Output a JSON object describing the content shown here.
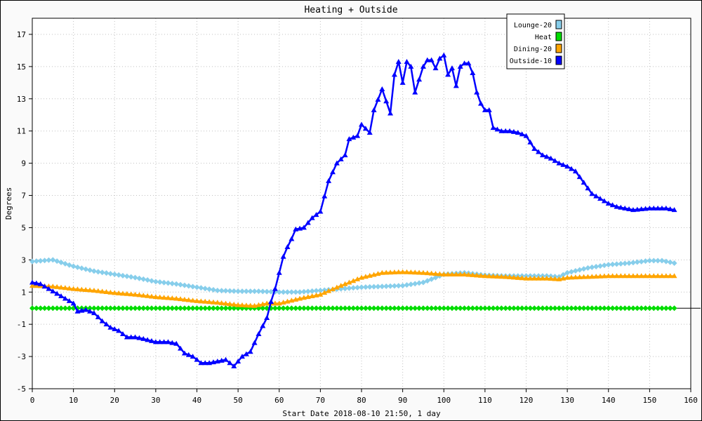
{
  "chart_data": {
    "type": "line",
    "title": "Heating + Outside",
    "xlabel": "Start Date 2018-08-10 21:50, 1 day",
    "ylabel": "Degrees",
    "xlim": [
      0,
      160
    ],
    "ylim": [
      -5,
      18
    ],
    "x_ticks": [
      0,
      10,
      20,
      30,
      40,
      50,
      60,
      70,
      80,
      90,
      100,
      110,
      120,
      130,
      140,
      150,
      160
    ],
    "y_ticks": [
      -5,
      -3,
      -1,
      1,
      3,
      5,
      7,
      9,
      11,
      13,
      15,
      17
    ],
    "grid": true,
    "legend": "top-right",
    "series": [
      {
        "name": "Lounge-20",
        "color": "#87CEEB",
        "marker": "diamond",
        "points": [
          [
            0,
            2.9
          ],
          [
            5,
            3.0
          ],
          [
            10,
            2.6
          ],
          [
            15,
            2.3
          ],
          [
            20,
            2.1
          ],
          [
            25,
            1.9
          ],
          [
            30,
            1.65
          ],
          [
            35,
            1.5
          ],
          [
            40,
            1.3
          ],
          [
            45,
            1.1
          ],
          [
            50,
            1.05
          ],
          [
            55,
            1.05
          ],
          [
            60,
            1.0
          ],
          [
            65,
            1.0
          ],
          [
            70,
            1.1
          ],
          [
            75,
            1.2
          ],
          [
            80,
            1.3
          ],
          [
            85,
            1.35
          ],
          [
            90,
            1.4
          ],
          [
            95,
            1.6
          ],
          [
            100,
            2.1
          ],
          [
            105,
            2.2
          ],
          [
            110,
            2.05
          ],
          [
            115,
            2.0
          ],
          [
            120,
            2.0
          ],
          [
            125,
            2.0
          ],
          [
            128,
            1.95
          ],
          [
            130,
            2.2
          ],
          [
            135,
            2.5
          ],
          [
            140,
            2.7
          ],
          [
            145,
            2.8
          ],
          [
            150,
            2.95
          ],
          [
            153,
            2.95
          ],
          [
            156,
            2.8
          ]
        ]
      },
      {
        "name": "Heat",
        "color": "#00DD00",
        "marker": "diamond",
        "points": [
          [
            0,
            0
          ],
          [
            156,
            0
          ]
        ]
      },
      {
        "name": "Dining-20",
        "color": "#FFA500",
        "marker": "triangle",
        "points": [
          [
            0,
            1.4
          ],
          [
            5,
            1.35
          ],
          [
            10,
            1.2
          ],
          [
            15,
            1.1
          ],
          [
            20,
            0.95
          ],
          [
            25,
            0.85
          ],
          [
            30,
            0.7
          ],
          [
            35,
            0.6
          ],
          [
            40,
            0.45
          ],
          [
            45,
            0.35
          ],
          [
            50,
            0.2
          ],
          [
            54,
            0.15
          ],
          [
            57,
            0.3
          ],
          [
            60,
            0.3
          ],
          [
            65,
            0.6
          ],
          [
            70,
            0.85
          ],
          [
            75,
            1.4
          ],
          [
            80,
            1.9
          ],
          [
            85,
            2.2
          ],
          [
            90,
            2.25
          ],
          [
            95,
            2.2
          ],
          [
            100,
            2.1
          ],
          [
            105,
            2.1
          ],
          [
            110,
            2.0
          ],
          [
            115,
            1.95
          ],
          [
            120,
            1.85
          ],
          [
            125,
            1.85
          ],
          [
            128,
            1.8
          ],
          [
            130,
            1.9
          ],
          [
            135,
            1.95
          ],
          [
            140,
            2.0
          ],
          [
            145,
            2.0
          ],
          [
            150,
            2.0
          ],
          [
            156,
            2.0
          ]
        ]
      },
      {
        "name": "Outside-10",
        "color": "#0000FF",
        "marker": "triangle",
        "points": [
          [
            0,
            1.6
          ],
          [
            2,
            1.5
          ],
          [
            4,
            1.2
          ],
          [
            6,
            0.9
          ],
          [
            8,
            0.6
          ],
          [
            10,
            0.3
          ],
          [
            11,
            -0.2
          ],
          [
            13,
            -0.1
          ],
          [
            15,
            -0.3
          ],
          [
            17,
            -0.8
          ],
          [
            19,
            -1.2
          ],
          [
            21,
            -1.4
          ],
          [
            23,
            -1.8
          ],
          [
            25,
            -1.8
          ],
          [
            27,
            -1.9
          ],
          [
            30,
            -2.1
          ],
          [
            33,
            -2.1
          ],
          [
            35,
            -2.2
          ],
          [
            37,
            -2.8
          ],
          [
            39,
            -3.0
          ],
          [
            41,
            -3.4
          ],
          [
            43,
            -3.4
          ],
          [
            45,
            -3.3
          ],
          [
            47,
            -3.2
          ],
          [
            49,
            -3.6
          ],
          [
            51,
            -3.0
          ],
          [
            53,
            -2.7
          ],
          [
            55,
            -1.6
          ],
          [
            57,
            -0.6
          ],
          [
            58,
            0.4
          ],
          [
            59,
            1.2
          ],
          [
            60,
            2.2
          ],
          [
            61,
            3.2
          ],
          [
            62,
            3.8
          ],
          [
            63,
            4.3
          ],
          [
            64,
            4.9
          ],
          [
            66,
            5.0
          ],
          [
            68,
            5.6
          ],
          [
            70,
            6.0
          ],
          [
            72,
            7.9
          ],
          [
            74,
            9.0
          ],
          [
            76,
            9.5
          ],
          [
            77,
            10.5
          ],
          [
            79,
            10.7
          ],
          [
            80,
            11.4
          ],
          [
            82,
            10.9
          ],
          [
            83,
            12.3
          ],
          [
            85,
            13.6
          ],
          [
            87,
            12.1
          ],
          [
            88,
            14.5
          ],
          [
            89,
            15.3
          ],
          [
            90,
            14.0
          ],
          [
            91,
            15.3
          ],
          [
            92,
            15.0
          ],
          [
            93,
            13.4
          ],
          [
            95,
            15.0
          ],
          [
            96,
            15.4
          ],
          [
            97,
            15.4
          ],
          [
            98,
            14.9
          ],
          [
            99,
            15.5
          ],
          [
            100,
            15.7
          ],
          [
            101,
            14.5
          ],
          [
            102,
            14.9
          ],
          [
            103,
            13.8
          ],
          [
            104,
            15.0
          ],
          [
            105,
            15.2
          ],
          [
            106,
            15.2
          ],
          [
            107,
            14.6
          ],
          [
            108,
            13.4
          ],
          [
            109,
            12.7
          ],
          [
            110,
            12.3
          ],
          [
            111,
            12.3
          ],
          [
            112,
            11.2
          ],
          [
            114,
            11.0
          ],
          [
            116,
            11.0
          ],
          [
            118,
            10.9
          ],
          [
            120,
            10.7
          ],
          [
            122,
            9.9
          ],
          [
            124,
            9.5
          ],
          [
            126,
            9.3
          ],
          [
            128,
            9.0
          ],
          [
            130,
            8.8
          ],
          [
            132,
            8.5
          ],
          [
            134,
            7.8
          ],
          [
            136,
            7.1
          ],
          [
            138,
            6.8
          ],
          [
            140,
            6.5
          ],
          [
            142,
            6.3
          ],
          [
            144,
            6.2
          ],
          [
            146,
            6.1
          ],
          [
            150,
            6.2
          ],
          [
            154,
            6.2
          ],
          [
            156,
            6.1
          ]
        ]
      }
    ]
  }
}
